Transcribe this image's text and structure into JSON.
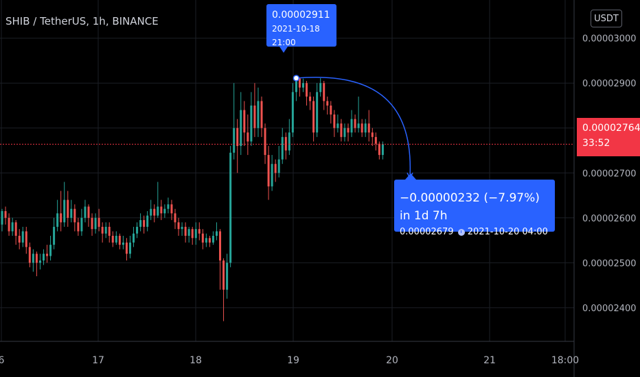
{
  "header": {
    "symbol_title": "SHIB / TetherUS, 1h, BINANCE",
    "currency_label": "USDT"
  },
  "price_tag": {
    "price": "0.00002764",
    "countdown": "33:52",
    "color": "#f23645"
  },
  "high_callout": {
    "price": "0.00002911",
    "datetime": "2021-10-18 21:00"
  },
  "measure_callout": {
    "change": "−0.00000232 (−7.97%) in 1d 7h",
    "price": "0.00002679",
    "datetime": "2021-10-20  04:00"
  },
  "chart_data": {
    "type": "candlestick",
    "title": "SHIB / TetherUS, 1h, BINANCE",
    "x_tick_labels": [
      "6",
      "17",
      "18",
      "19",
      "20",
      "21",
      "18:00"
    ],
    "y_tick_labels": [
      "0.00002400",
      "0.00002500",
      "0.00002600",
      "0.00002700",
      "0.00002800",
      "0.00002900",
      "0.00003000"
    ],
    "y_ticks": [
      2.4e-05,
      2.5e-05,
      2.6e-05,
      2.7e-05,
      2.8e-05,
      2.9e-05,
      3e-05
    ],
    "ylim": [
      2.325e-05,
      3.085e-05
    ],
    "last_price": 2.764e-05,
    "up_color": "#26a69a",
    "down_color": "#ef5350",
    "accent_color": "#2962ff",
    "grid": true,
    "ohlc": [
      [
        2.585,
        2.615,
        2.62,
        2.57
      ],
      [
        2.615,
        2.6,
        2.625,
        2.585
      ],
      [
        2.6,
        2.57,
        2.61,
        2.56
      ],
      [
        2.57,
        2.59,
        2.6,
        2.56
      ],
      [
        2.59,
        2.56,
        2.595,
        2.54
      ],
      [
        2.56,
        2.545,
        2.575,
        2.53
      ],
      [
        2.545,
        2.57,
        2.58,
        2.535
      ],
      [
        2.57,
        2.535,
        2.58,
        2.52
      ],
      [
        2.535,
        2.5,
        2.545,
        2.49
      ],
      [
        2.5,
        2.52,
        2.53,
        2.48
      ],
      [
        2.52,
        2.5,
        2.525,
        2.47
      ],
      [
        2.5,
        2.505,
        2.52,
        2.485
      ],
      [
        2.505,
        2.52,
        2.53,
        2.495
      ],
      [
        2.52,
        2.515,
        2.54,
        2.5
      ],
      [
        2.515,
        2.54,
        2.56,
        2.505
      ],
      [
        2.54,
        2.58,
        2.6,
        2.53
      ],
      [
        2.58,
        2.61,
        2.64,
        2.57
      ],
      [
        2.61,
        2.59,
        2.66,
        2.57
      ],
      [
        2.59,
        2.64,
        2.68,
        2.58
      ],
      [
        2.64,
        2.6,
        2.66,
        2.58
      ],
      [
        2.6,
        2.62,
        2.64,
        2.59
      ],
      [
        2.62,
        2.59,
        2.63,
        2.57
      ],
      [
        2.59,
        2.57,
        2.6,
        2.56
      ],
      [
        2.57,
        2.6,
        2.62,
        2.56
      ],
      [
        2.6,
        2.625,
        2.64,
        2.59
      ],
      [
        2.625,
        2.6,
        2.63,
        2.58
      ],
      [
        2.6,
        2.575,
        2.61,
        2.56
      ],
      [
        2.575,
        2.6,
        2.61,
        2.565
      ],
      [
        2.6,
        2.58,
        2.62,
        2.57
      ],
      [
        2.58,
        2.565,
        2.59,
        2.545
      ],
      [
        2.565,
        2.58,
        2.59,
        2.555
      ],
      [
        2.58,
        2.56,
        2.59,
        2.545
      ],
      [
        2.56,
        2.545,
        2.57,
        2.535
      ],
      [
        2.545,
        2.56,
        2.57,
        2.54
      ],
      [
        2.56,
        2.54,
        2.565,
        2.53
      ],
      [
        2.54,
        2.545,
        2.56,
        2.53
      ],
      [
        2.545,
        2.52,
        2.555,
        2.505
      ],
      [
        2.52,
        2.545,
        2.56,
        2.51
      ],
      [
        2.545,
        2.565,
        2.58,
        2.535
      ],
      [
        2.565,
        2.58,
        2.59,
        2.555
      ],
      [
        2.58,
        2.595,
        2.61,
        2.57
      ],
      [
        2.595,
        2.58,
        2.605,
        2.565
      ],
      [
        2.58,
        2.605,
        2.615,
        2.57
      ],
      [
        2.605,
        2.62,
        2.64,
        2.595
      ],
      [
        2.62,
        2.605,
        2.63,
        2.59
      ],
      [
        2.605,
        2.625,
        2.68,
        2.6
      ],
      [
        2.625,
        2.61,
        2.64,
        2.595
      ],
      [
        2.61,
        2.62,
        2.63,
        2.6
      ],
      [
        2.62,
        2.63,
        2.645,
        2.61
      ],
      [
        2.63,
        2.61,
        2.64,
        2.595
      ],
      [
        2.61,
        2.59,
        2.62,
        2.575
      ],
      [
        2.59,
        2.575,
        2.6,
        2.56
      ],
      [
        2.575,
        2.58,
        2.59,
        2.56
      ],
      [
        2.58,
        2.56,
        2.59,
        2.545
      ],
      [
        2.56,
        2.575,
        2.58,
        2.545
      ],
      [
        2.575,
        2.555,
        2.58,
        2.54
      ],
      [
        2.555,
        2.575,
        2.59,
        2.54
      ],
      [
        2.575,
        2.565,
        2.59,
        2.55
      ],
      [
        2.565,
        2.545,
        2.575,
        2.53
      ],
      [
        2.545,
        2.555,
        2.565,
        2.535
      ],
      [
        2.555,
        2.545,
        2.56,
        2.535
      ],
      [
        2.545,
        2.56,
        2.57,
        2.54
      ],
      [
        2.56,
        2.57,
        2.59,
        2.55
      ],
      [
        2.57,
        2.505,
        2.575,
        2.44
      ],
      [
        2.505,
        2.44,
        2.51,
        2.37
      ],
      [
        2.44,
        2.5,
        2.52,
        2.42
      ],
      [
        2.5,
        2.745,
        2.76,
        2.49
      ],
      [
        2.745,
        2.8,
        2.9,
        2.73
      ],
      [
        2.8,
        2.76,
        2.82,
        2.7
      ],
      [
        2.76,
        2.84,
        2.88,
        2.74
      ],
      [
        2.84,
        2.79,
        2.86,
        2.76
      ],
      [
        2.79,
        2.77,
        2.83,
        2.74
      ],
      [
        2.77,
        2.85,
        2.88,
        2.76
      ],
      [
        2.85,
        2.8,
        2.9,
        2.78
      ],
      [
        2.8,
        2.86,
        2.89,
        2.78
      ],
      [
        2.86,
        2.8,
        2.87,
        2.78
      ],
      [
        2.8,
        2.74,
        2.81,
        2.72
      ],
      [
        2.74,
        2.67,
        2.76,
        2.64
      ],
      [
        2.67,
        2.72,
        2.74,
        2.66
      ],
      [
        2.72,
        2.7,
        2.73,
        2.68
      ],
      [
        2.7,
        2.73,
        2.76,
        2.69
      ],
      [
        2.73,
        2.78,
        2.8,
        2.72
      ],
      [
        2.78,
        2.75,
        2.79,
        2.73
      ],
      [
        2.75,
        2.79,
        2.82,
        2.74
      ],
      [
        2.79,
        2.88,
        2.9,
        2.78
      ],
      [
        2.88,
        2.91,
        2.911,
        2.86
      ],
      [
        2.91,
        2.89,
        2.911,
        2.87
      ],
      [
        2.89,
        2.9,
        2.91,
        2.88
      ],
      [
        2.9,
        2.87,
        2.905,
        2.85
      ],
      [
        2.87,
        2.86,
        2.88,
        2.84
      ],
      [
        2.86,
        2.79,
        2.87,
        2.77
      ],
      [
        2.79,
        2.88,
        2.9,
        2.78
      ],
      [
        2.88,
        2.9,
        2.911,
        2.87
      ],
      [
        2.9,
        2.86,
        2.905,
        2.84
      ],
      [
        2.86,
        2.85,
        2.87,
        2.83
      ],
      [
        2.85,
        2.83,
        2.86,
        2.81
      ],
      [
        2.83,
        2.8,
        2.84,
        2.78
      ],
      [
        2.8,
        2.81,
        2.83,
        2.79
      ],
      [
        2.81,
        2.78,
        2.82,
        2.77
      ],
      [
        2.78,
        2.8,
        2.81,
        2.77
      ],
      [
        2.8,
        2.79,
        2.81,
        2.77
      ],
      [
        2.79,
        2.82,
        2.84,
        2.78
      ],
      [
        2.82,
        2.8,
        2.83,
        2.79
      ],
      [
        2.8,
        2.81,
        2.87,
        2.79
      ],
      [
        2.81,
        2.79,
        2.82,
        2.78
      ],
      [
        2.79,
        2.81,
        2.82,
        2.78
      ],
      [
        2.81,
        2.79,
        2.84,
        2.77
      ],
      [
        2.79,
        2.78,
        2.8,
        2.76
      ],
      [
        2.78,
        2.765,
        2.79,
        2.75
      ],
      [
        2.765,
        2.74,
        2.77,
        2.73
      ],
      [
        2.74,
        2.764,
        2.77,
        2.73
      ]
    ]
  }
}
